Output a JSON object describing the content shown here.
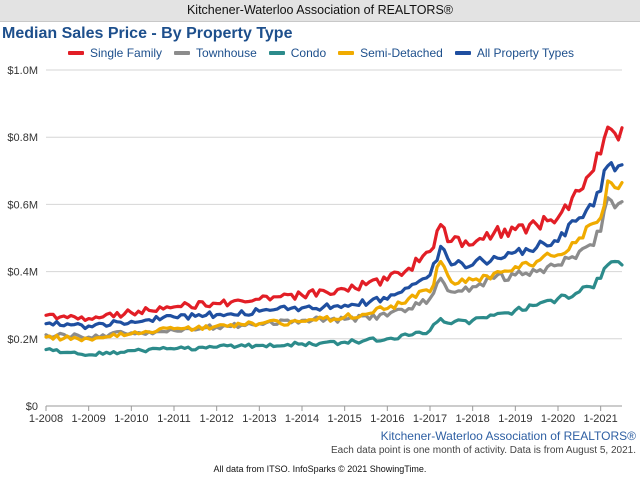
{
  "header": {
    "organization": "Kitchener-Waterloo Association of REALTORS®"
  },
  "chart_data": {
    "type": "line",
    "title": "Median Sales Price - By Property Type",
    "xlabel": "",
    "ylabel": "",
    "x_ticks": [
      "1-2008",
      "1-2009",
      "1-2010",
      "1-2011",
      "1-2012",
      "1-2013",
      "1-2014",
      "1-2015",
      "1-2016",
      "1-2017",
      "1-2018",
      "1-2019",
      "1-2020",
      "1-2021"
    ],
    "y_ticks": [
      "$0",
      "$0.2M",
      "$0.4M",
      "$0.6M",
      "$0.8M",
      "$1.0M"
    ],
    "ylim": [
      0,
      1000000
    ],
    "x_domain": [
      "2008-01",
      "2021-07"
    ],
    "grid": true,
    "legend_position": "top",
    "series": [
      {
        "name": "Single Family",
        "color": "#e21e26",
        "points": [
          [
            "2008-01",
            270000
          ],
          [
            "2009-01",
            260000
          ],
          [
            "2010-01",
            278000
          ],
          [
            "2011-01",
            295000
          ],
          [
            "2012-01",
            305000
          ],
          [
            "2013-01",
            318000
          ],
          [
            "2014-01",
            330000
          ],
          [
            "2015-01",
            348000
          ],
          [
            "2016-01",
            375000
          ],
          [
            "2016-07",
            410000
          ],
          [
            "2017-01",
            460000
          ],
          [
            "2017-04",
            540000
          ],
          [
            "2017-07",
            490000
          ],
          [
            "2018-01",
            480000
          ],
          [
            "2018-07",
            515000
          ],
          [
            "2019-01",
            525000
          ],
          [
            "2019-07",
            540000
          ],
          [
            "2020-01",
            560000
          ],
          [
            "2020-07",
            640000
          ],
          [
            "2020-10",
            690000
          ],
          [
            "2021-01",
            750000
          ],
          [
            "2021-03",
            830000
          ],
          [
            "2021-05",
            812000
          ],
          [
            "2021-07",
            828000
          ]
        ]
      },
      {
        "name": "Townhouse",
        "color": "#8c8c8c",
        "points": [
          [
            "2008-01",
            212000
          ],
          [
            "2009-01",
            205000
          ],
          [
            "2010-01",
            218000
          ],
          [
            "2011-01",
            225000
          ],
          [
            "2012-01",
            235000
          ],
          [
            "2013-01",
            245000
          ],
          [
            "2014-01",
            255000
          ],
          [
            "2015-01",
            258000
          ],
          [
            "2016-01",
            268000
          ],
          [
            "2016-07",
            290000
          ],
          [
            "2017-01",
            320000
          ],
          [
            "2017-04",
            380000
          ],
          [
            "2017-07",
            340000
          ],
          [
            "2018-01",
            355000
          ],
          [
            "2018-07",
            380000
          ],
          [
            "2019-01",
            390000
          ],
          [
            "2019-07",
            400000
          ],
          [
            "2020-01",
            420000
          ],
          [
            "2020-07",
            460000
          ],
          [
            "2020-10",
            480000
          ],
          [
            "2021-01",
            520000
          ],
          [
            "2021-03",
            620000
          ],
          [
            "2021-05",
            590000
          ],
          [
            "2021-07",
            608000
          ]
        ]
      },
      {
        "name": "Condo",
        "color": "#2c8b8b",
        "points": [
          [
            "2008-01",
            168000
          ],
          [
            "2009-01",
            152000
          ],
          [
            "2010-01",
            165000
          ],
          [
            "2011-01",
            170000
          ],
          [
            "2012-01",
            175000
          ],
          [
            "2013-01",
            180000
          ],
          [
            "2014-01",
            185000
          ],
          [
            "2015-01",
            190000
          ],
          [
            "2016-01",
            200000
          ],
          [
            "2016-07",
            210000
          ],
          [
            "2017-01",
            225000
          ],
          [
            "2017-04",
            260000
          ],
          [
            "2017-07",
            245000
          ],
          [
            "2018-01",
            255000
          ],
          [
            "2018-07",
            270000
          ],
          [
            "2019-01",
            285000
          ],
          [
            "2019-07",
            300000
          ],
          [
            "2020-01",
            320000
          ],
          [
            "2020-07",
            340000
          ],
          [
            "2020-10",
            355000
          ],
          [
            "2021-01",
            380000
          ],
          [
            "2021-03",
            420000
          ],
          [
            "2021-05",
            430000
          ],
          [
            "2021-07",
            420000
          ]
        ]
      },
      {
        "name": "Semi-Detached",
        "color": "#f0ab00",
        "points": [
          [
            "2008-01",
            205000
          ],
          [
            "2009-01",
            200000
          ],
          [
            "2010-01",
            215000
          ],
          [
            "2011-01",
            230000
          ],
          [
            "2012-01",
            238000
          ],
          [
            "2013-01",
            245000
          ],
          [
            "2014-01",
            252000
          ],
          [
            "2015-01",
            265000
          ],
          [
            "2016-01",
            290000
          ],
          [
            "2016-07",
            320000
          ],
          [
            "2017-01",
            340000
          ],
          [
            "2017-04",
            430000
          ],
          [
            "2017-07",
            370000
          ],
          [
            "2018-01",
            375000
          ],
          [
            "2018-07",
            395000
          ],
          [
            "2019-01",
            415000
          ],
          [
            "2019-07",
            430000
          ],
          [
            "2020-01",
            450000
          ],
          [
            "2020-07",
            500000
          ],
          [
            "2020-10",
            540000
          ],
          [
            "2021-01",
            560000
          ],
          [
            "2021-03",
            670000
          ],
          [
            "2021-05",
            650000
          ],
          [
            "2021-07",
            665000
          ]
        ]
      },
      {
        "name": "All Property Types",
        "color": "#1f4fa0",
        "points": [
          [
            "2008-01",
            245000
          ],
          [
            "2009-01",
            238000
          ],
          [
            "2010-01",
            252000
          ],
          [
            "2011-01",
            265000
          ],
          [
            "2012-01",
            272000
          ],
          [
            "2013-01",
            282000
          ],
          [
            "2014-01",
            292000
          ],
          [
            "2015-01",
            300000
          ],
          [
            "2016-01",
            318000
          ],
          [
            "2016-07",
            352000
          ],
          [
            "2017-01",
            390000
          ],
          [
            "2017-04",
            475000
          ],
          [
            "2017-07",
            420000
          ],
          [
            "2018-01",
            420000
          ],
          [
            "2018-07",
            445000
          ],
          [
            "2019-01",
            458000
          ],
          [
            "2019-07",
            472000
          ],
          [
            "2020-01",
            490000
          ],
          [
            "2020-07",
            560000
          ],
          [
            "2020-10",
            600000
          ],
          [
            "2021-01",
            640000
          ],
          [
            "2021-03",
            715000
          ],
          [
            "2021-05",
            700000
          ],
          [
            "2021-07",
            718000
          ]
        ]
      }
    ]
  },
  "footer": {
    "source": "Kitchener-Waterloo Association of REALTORS®",
    "note": "Each data point is one month of activity. Data is from August 5, 2021.",
    "credit": "All data from ITSO. InfoSparks © 2021 ShowingTime."
  }
}
